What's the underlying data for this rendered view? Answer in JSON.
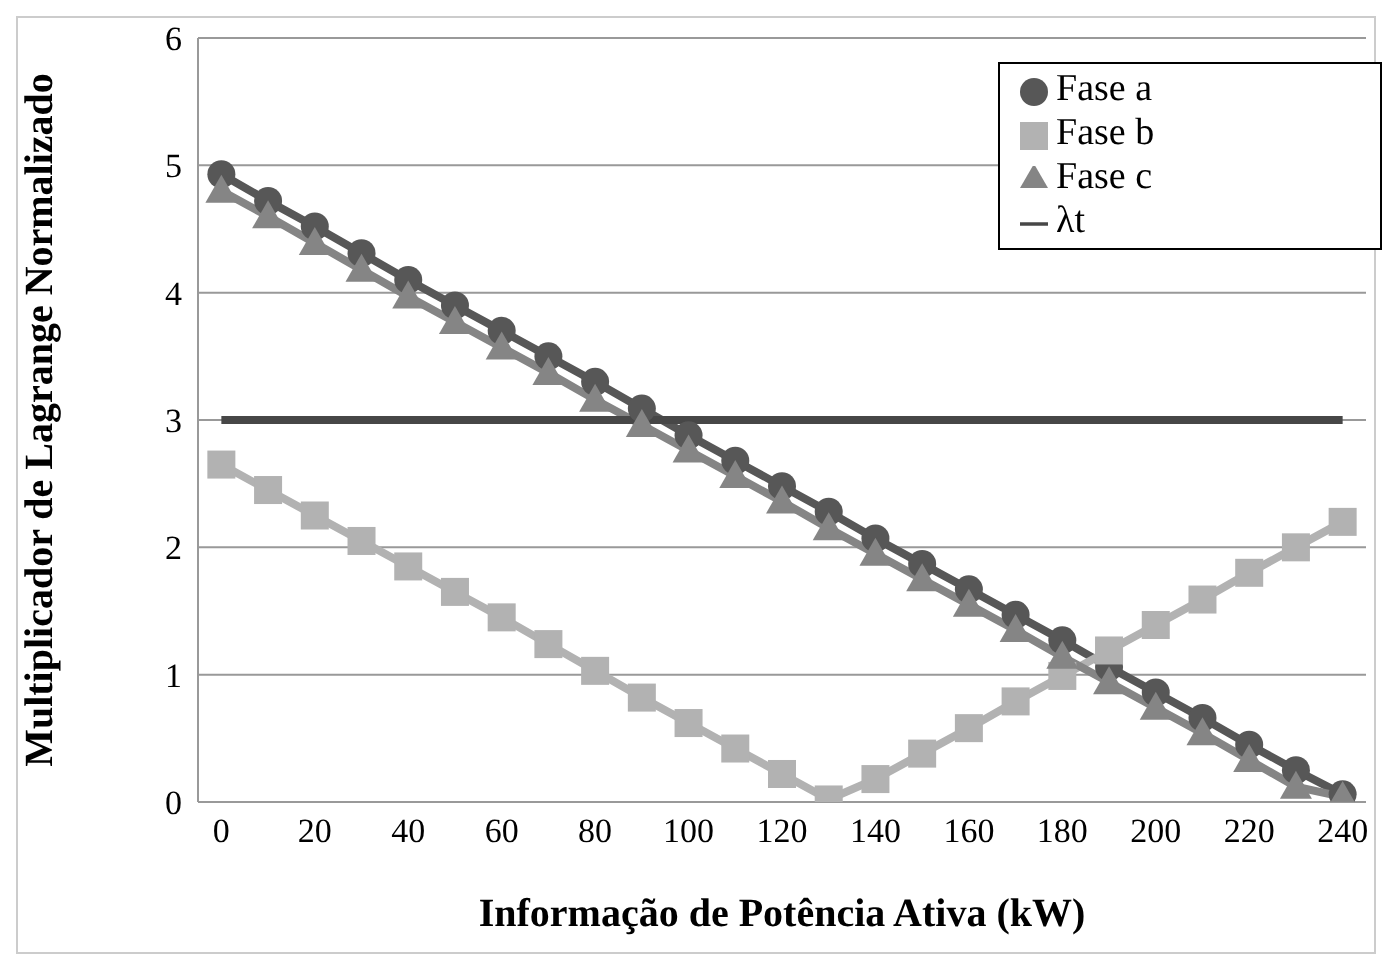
{
  "chart_data": {
    "type": "line",
    "xlabel": "Informação de Potência Ativa (kW)",
    "ylabel": "Multiplicador de Lagrange Normalizado",
    "x": [
      0,
      10,
      20,
      30,
      40,
      50,
      60,
      70,
      80,
      90,
      100,
      110,
      120,
      130,
      140,
      150,
      160,
      170,
      180,
      190,
      200,
      210,
      220,
      230,
      240
    ],
    "xlim": [
      -5,
      245
    ],
    "xticks": [
      0,
      20,
      40,
      60,
      80,
      100,
      120,
      140,
      160,
      180,
      200,
      220,
      240
    ],
    "ylim": [
      0,
      6
    ],
    "yticks": [
      0,
      1,
      2,
      3,
      4,
      5,
      6
    ],
    "grid": "y",
    "legend": "top right",
    "series": [
      {
        "name": "Fase a",
        "color": "#575757",
        "marker": "circle",
        "values": [
          4.93,
          4.72,
          4.52,
          4.31,
          4.1,
          3.9,
          3.7,
          3.5,
          3.3,
          3.09,
          2.88,
          2.68,
          2.48,
          2.28,
          2.07,
          1.87,
          1.67,
          1.47,
          1.27,
          1.06,
          0.86,
          0.66,
          0.45,
          0.25,
          0.06
        ]
      },
      {
        "name": "Fase b",
        "color": "#b2b2b2",
        "marker": "square",
        "values": [
          2.65,
          2.45,
          2.25,
          2.05,
          1.85,
          1.65,
          1.45,
          1.24,
          1.03,
          0.82,
          0.62,
          0.42,
          0.22,
          0.02,
          0.18,
          0.38,
          0.58,
          0.79,
          0.99,
          1.19,
          1.39,
          1.59,
          1.8,
          2.0,
          2.2
        ]
      },
      {
        "name": "Fase c",
        "color": "#858585",
        "marker": "triangle",
        "values": [
          4.8,
          4.6,
          4.39,
          4.18,
          3.97,
          3.77,
          3.57,
          3.37,
          3.16,
          2.96,
          2.76,
          2.56,
          2.36,
          2.15,
          1.95,
          1.75,
          1.55,
          1.35,
          1.14,
          0.94,
          0.74,
          0.54,
          0.33,
          0.12,
          0.04
        ]
      },
      {
        "name": "λt",
        "color": "#474747",
        "marker": "none",
        "values": [
          3,
          3,
          3,
          3,
          3,
          3,
          3,
          3,
          3,
          3,
          3,
          3,
          3,
          3,
          3,
          3,
          3,
          3,
          3,
          3,
          3,
          3,
          3,
          3,
          3
        ]
      }
    ]
  }
}
